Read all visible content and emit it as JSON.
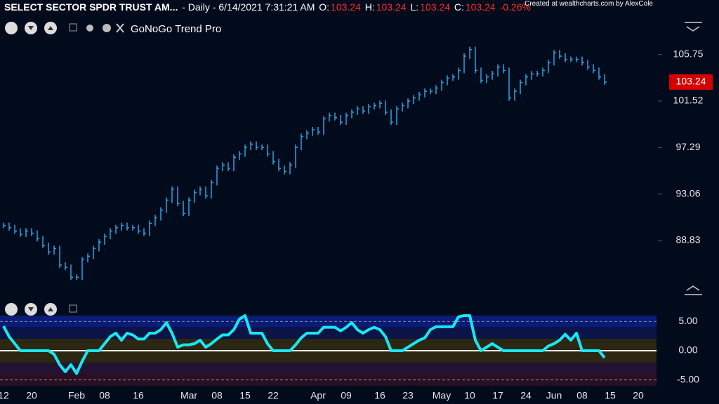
{
  "header": {
    "symbol": "SELECT SECTOR SPDR TRUST AM...",
    "interval": "- Daily - 6/14/2021 7:31:21 AM",
    "ohlc": [
      {
        "label": "O:",
        "value": 103.24
      },
      {
        "label": "H:",
        "value": 103.24
      },
      {
        "label": "L:",
        "value": 103.24
      },
      {
        "label": "C:",
        "value": 103.24
      }
    ],
    "change": "-0.26%",
    "credit": "Created at wealthcharts.com by AlexCole",
    "indicator": "GoNoGo Trend Pro"
  },
  "chart_data": [
    {
      "type": "price",
      "color": "#29a3e0",
      "values": [
        90.2,
        90.0,
        89.7,
        89.4,
        89.7,
        89.5,
        89.0,
        88.4,
        87.8,
        88.1,
        86.6,
        86.4,
        85.5,
        85.5,
        87.1,
        87.4,
        88.1,
        88.7,
        89.2,
        89.7,
        90.0,
        90.2,
        90.0,
        90.0,
        89.7,
        89.5,
        90.4,
        90.9,
        91.6,
        92.5,
        93.5,
        92.2,
        91.3,
        92.5,
        93.2,
        93.5,
        92.9,
        94.1,
        95.4,
        95.7,
        95.4,
        96.4,
        96.7,
        97.3,
        97.6,
        97.3,
        97.3,
        96.7,
        96.0,
        95.4,
        95.1,
        95.7,
        97.3,
        98.3,
        98.6,
        98.9,
        98.7,
        99.9,
        100.2,
        100.0,
        99.6,
        100.2,
        100.5,
        100.8,
        100.6,
        101.0,
        101.1,
        101.3,
        100.5,
        99.6,
        100.8,
        101.1,
        101.5,
        101.8,
        102.1,
        102.4,
        102.4,
        102.7,
        103.2,
        103.6,
        103.7,
        104.3,
        105.6,
        106.2,
        104.3,
        103.4,
        103.7,
        104.0,
        104.6,
        104.3,
        101.8,
        102.4,
        103.2,
        103.7,
        104.0,
        104.0,
        104.3,
        105.0,
        105.9,
        105.6,
        105.3,
        105.3,
        105.3,
        105.0,
        104.6,
        104.3,
        103.7,
        103.24
      ],
      "xlim": [
        -0.625,
        116.25
      ],
      "ylim": [
        83.6,
        110.7
      ],
      "yticks": [
        105.75,
        101.52,
        97.29,
        93.06,
        88.83
      ]
    },
    {
      "type": "line",
      "color": "#19e6f0",
      "values": [
        4.2,
        2.4,
        1.2,
        0,
        0,
        0,
        0,
        0,
        0,
        -0.6,
        -2.4,
        -3.6,
        -2.4,
        -3.9,
        -1.8,
        0,
        0,
        0,
        1.2,
        2.4,
        3.0,
        1.8,
        3.0,
        2.7,
        2.0,
        2.0,
        3.0,
        3.0,
        3.6,
        4.8,
        3.0,
        0.6,
        1.0,
        1.0,
        1.2,
        1.8,
        0.6,
        1.2,
        2.0,
        2.7,
        2.7,
        3.6,
        5.4,
        6.0,
        3.0,
        3.0,
        3.0,
        1.2,
        0,
        0,
        0,
        0,
        1.0,
        2.2,
        3.0,
        3.0,
        3.0,
        4.0,
        4.0,
        4.0,
        3.4,
        4.0,
        4.8,
        3.6,
        3.0,
        3.6,
        4.0,
        3.6,
        2.4,
        0,
        0,
        0,
        0.6,
        1.2,
        1.8,
        2.2,
        3.6,
        4.1,
        4.1,
        4.1,
        4.1,
        5.8,
        6.0,
        6.0,
        1.8,
        0,
        0.6,
        1.2,
        0.6,
        0,
        0,
        0,
        0,
        0,
        0,
        0,
        0,
        0.8,
        1.2,
        1.8,
        2.8,
        1.8,
        3.0,
        0,
        0,
        0,
        0,
        -1.2
      ],
      "xlim": [
        -0.625,
        116.25
      ],
      "ylim": [
        -6,
        6
      ],
      "yticks": [
        {
          "value": 5,
          "label": "5.00"
        },
        {
          "value": 0,
          "label": "0.00"
        },
        {
          "value": -5,
          "label": "-5.00"
        }
      ],
      "xticks": [
        {
          "value": 0,
          "label": "12"
        },
        {
          "value": 5,
          "label": "20"
        },
        {
          "value": 13,
          "label": "Feb"
        },
        {
          "value": 18,
          "label": "08"
        },
        {
          "value": 24,
          "label": "16"
        },
        {
          "value": 33,
          "label": "Mar"
        },
        {
          "value": 38,
          "label": "08"
        },
        {
          "value": 43,
          "label": "15"
        },
        {
          "value": 48,
          "label": "22"
        },
        {
          "value": 56,
          "label": "Apr"
        },
        {
          "value": 61,
          "label": "09"
        },
        {
          "value": 67,
          "label": "16"
        },
        {
          "value": 72,
          "label": "23"
        },
        {
          "value": 78,
          "label": "May"
        },
        {
          "value": 83,
          "label": "10"
        },
        {
          "value": 88,
          "label": "17"
        },
        {
          "value": 93,
          "label": "24"
        },
        {
          "value": 98,
          "label": "Jun"
        },
        {
          "value": 103,
          "label": "08"
        },
        {
          "value": 108,
          "label": "15"
        },
        {
          "value": 113,
          "label": "20"
        }
      ]
    }
  ]
}
